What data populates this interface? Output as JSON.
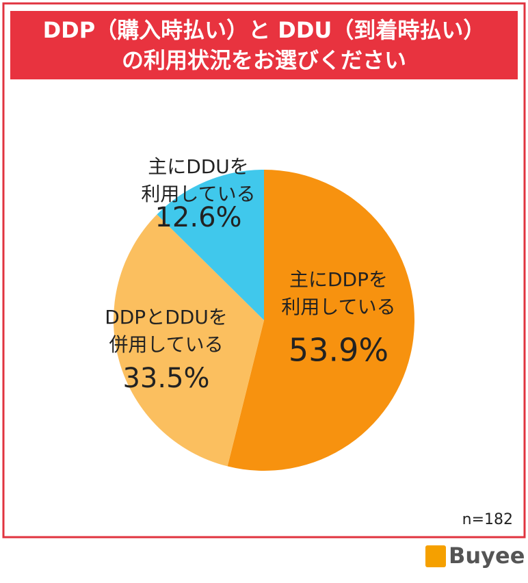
{
  "chart_data": {
    "type": "pie",
    "title": [
      "DDP（購入時払い）と DDU（到着時払い）",
      "の利用状況をお選びください"
    ],
    "categories": [
      [
        "主にDDPを",
        "利用している"
      ],
      [
        "DDPとDDUを",
        "併用している"
      ],
      [
        "主にDDUを",
        "利用している"
      ]
    ],
    "values": [
      53.9,
      33.5,
      12.6
    ],
    "value_labels": [
      "53.9%",
      "33.5%",
      "12.6%"
    ],
    "colors": [
      "#f7920f",
      "#fbbf5f",
      "#40c8ec"
    ],
    "note": "n=182",
    "logo": "Buyee"
  }
}
